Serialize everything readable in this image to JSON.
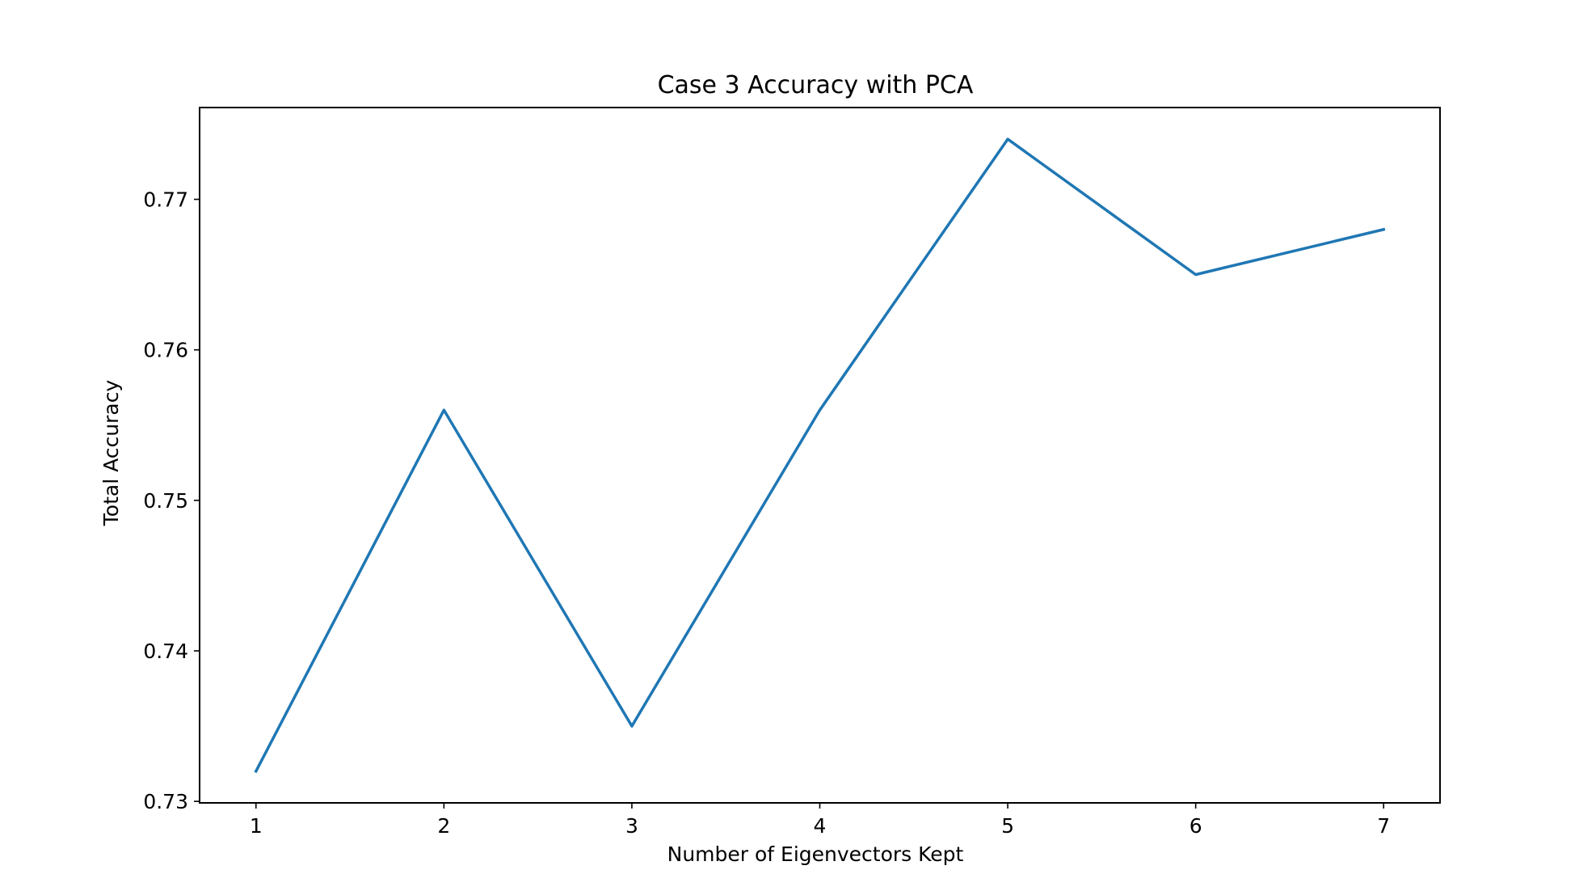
{
  "chart_data": {
    "type": "line",
    "title": "Case 3 Accuracy with PCA",
    "xlabel": "Number of Eigenvectors Kept",
    "ylabel": "Total Accuracy",
    "x": [
      1,
      2,
      3,
      4,
      5,
      6,
      7
    ],
    "series": [
      {
        "values": [
          0.732,
          0.756,
          0.735,
          0.756,
          0.774,
          0.765,
          0.768
        ],
        "color": "#1f77b4"
      }
    ],
    "xticks": [
      1,
      2,
      3,
      4,
      5,
      6,
      7
    ],
    "xtick_labels": [
      "1",
      "2",
      "3",
      "4",
      "5",
      "6",
      "7"
    ],
    "yticks": [
      0.73,
      0.74,
      0.75,
      0.76,
      0.77
    ],
    "ytick_labels": [
      "0.73",
      "0.74",
      "0.75",
      "0.76",
      "0.77"
    ],
    "xlim": [
      0.7,
      7.3
    ],
    "ylim": [
      0.7299,
      0.7761
    ],
    "grid": false,
    "legend": false
  }
}
